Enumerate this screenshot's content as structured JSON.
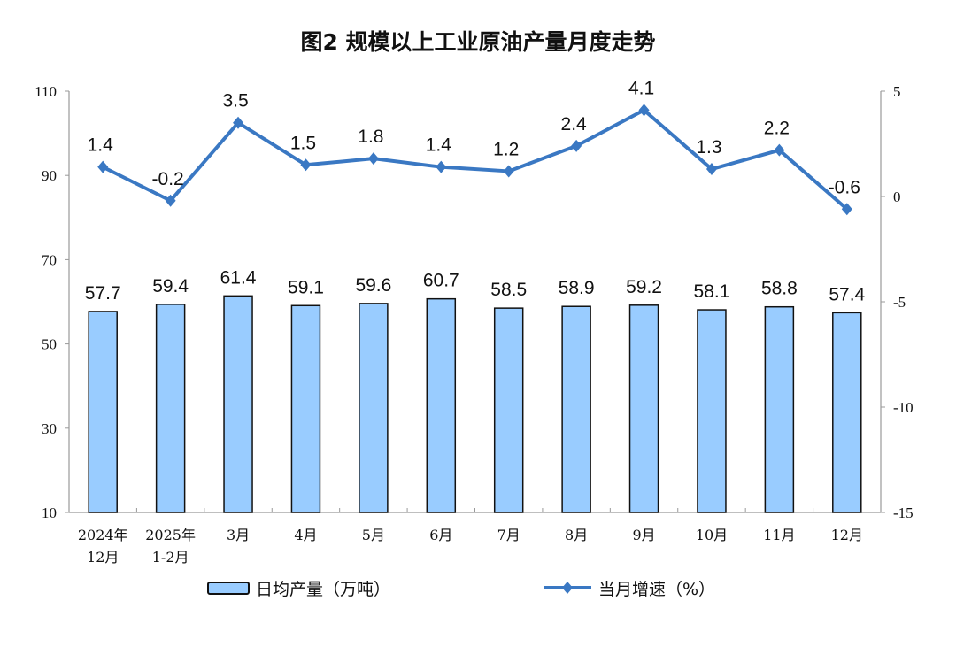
{
  "chart_data": {
    "type": "bar+line",
    "title": "图2  规模以上工业原油产量月度走势",
    "categories": [
      [
        "2024年",
        "12月"
      ],
      [
        "2025年",
        "1-2月"
      ],
      [
        "3月"
      ],
      [
        "4月"
      ],
      [
        "5月"
      ],
      [
        "6月"
      ],
      [
        "7月"
      ],
      [
        "8月"
      ],
      [
        "9月"
      ],
      [
        "10月"
      ],
      [
        "11月"
      ],
      [
        "12月"
      ]
    ],
    "series": [
      {
        "name": "日均产量（万吨）",
        "type": "bar",
        "axis": "left",
        "color": "#99CCFF",
        "values": [
          57.7,
          59.4,
          61.4,
          59.1,
          59.6,
          60.7,
          58.5,
          58.9,
          59.2,
          58.1,
          58.8,
          57.4
        ]
      },
      {
        "name": "当月增速（%）",
        "type": "line",
        "axis": "right",
        "color": "#3A78C3",
        "values": [
          1.4,
          -0.2,
          3.5,
          1.5,
          1.8,
          1.4,
          1.2,
          2.4,
          4.1,
          1.3,
          2.2,
          -0.6
        ]
      }
    ],
    "left_axis": {
      "ylim": [
        10,
        110
      ],
      "ticks": [
        110,
        90,
        70,
        50,
        30,
        10
      ]
    },
    "right_axis": {
      "ylim": [
        -15,
        5
      ],
      "ticks": [
        5,
        0,
        -5,
        -10,
        -15
      ]
    },
    "grid": false,
    "legend": "bottom"
  }
}
